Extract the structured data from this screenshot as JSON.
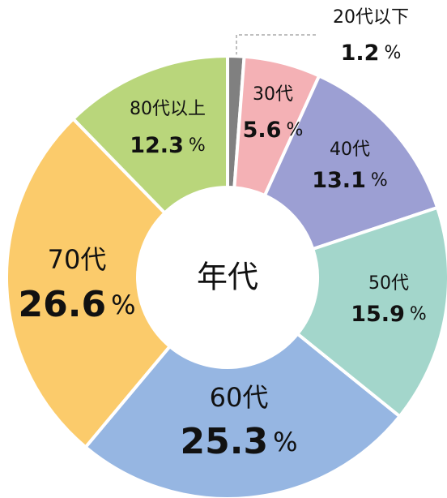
{
  "chart_data": {
    "type": "donut",
    "center_label": "年代",
    "unit": "%",
    "categories": [
      "20代以下",
      "30代",
      "40代",
      "50代",
      "60代",
      "70代",
      "80代以上"
    ],
    "values": [
      1.2,
      5.6,
      13.1,
      15.9,
      25.3,
      26.6,
      12.3
    ],
    "colors": [
      "#808080",
      "#f4b1b5",
      "#9c9fd3",
      "#a3d6cb",
      "#96b6e2",
      "#fbcb6b",
      "#b9d67b"
    ]
  }
}
